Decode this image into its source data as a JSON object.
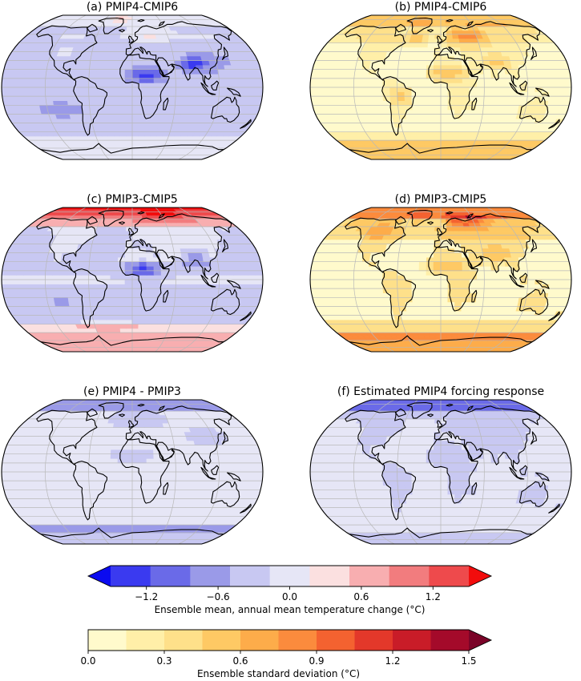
{
  "chart_data": [
    {
      "type": "heatmap",
      "title": "(a) PMIP4-CMIP6",
      "metric": "mean",
      "pattern": "a"
    },
    {
      "type": "heatmap",
      "title": "(b) PMIP4-CMIP6",
      "metric": "std",
      "pattern": "b"
    },
    {
      "type": "heatmap",
      "title": "(c) PMIP3-CMIP5",
      "metric": "mean",
      "pattern": "c"
    },
    {
      "type": "heatmap",
      "title": "(d) PMIP3-CMIP5",
      "metric": "std",
      "pattern": "d"
    },
    {
      "type": "heatmap",
      "title": "(e) PMIP4 - PMIP3",
      "metric": "mean",
      "pattern": "e"
    },
    {
      "type": "heatmap",
      "title": "(f) Estimated PMIP4 forcing response",
      "metric": "mean",
      "pattern": "f"
    }
  ],
  "colorbars": {
    "mean": {
      "label": "Ensemble mean, annual mean temperature change (°C)",
      "range": [
        -1.5,
        1.5
      ],
      "ticks": [
        "−1.2",
        "−0.6",
        "0.0",
        "0.6",
        "1.2"
      ],
      "tick_values": [
        -1.2,
        -0.6,
        0.0,
        0.6,
        1.2
      ],
      "colors": [
        "#0b0bf0",
        "#3a3af0",
        "#6a6ae8",
        "#9a9ae8",
        "#c8c8f2",
        "#e6e6f6",
        "#fbe0e0",
        "#f8aeb0",
        "#f27c7e",
        "#ee4a4c",
        "#f20c0c"
      ],
      "extend": "both"
    },
    "std": {
      "label": "Ensemble standard deviation (°C)",
      "range": [
        0,
        1.5
      ],
      "ticks": [
        "0.0",
        "0.3",
        "0.6",
        "0.9",
        "1.2",
        "1.5"
      ],
      "tick_values": [
        0,
        0.3,
        0.6,
        0.9,
        1.2,
        1.5
      ],
      "colors": [
        "#fffacc",
        "#ffefa8",
        "#fee08a",
        "#fec964",
        "#fdac4a",
        "#fb8b3d",
        "#f46230",
        "#e3382a",
        "#c91c28",
        "#a40a2a",
        "#7a0428"
      ],
      "extend": "max"
    }
  }
}
